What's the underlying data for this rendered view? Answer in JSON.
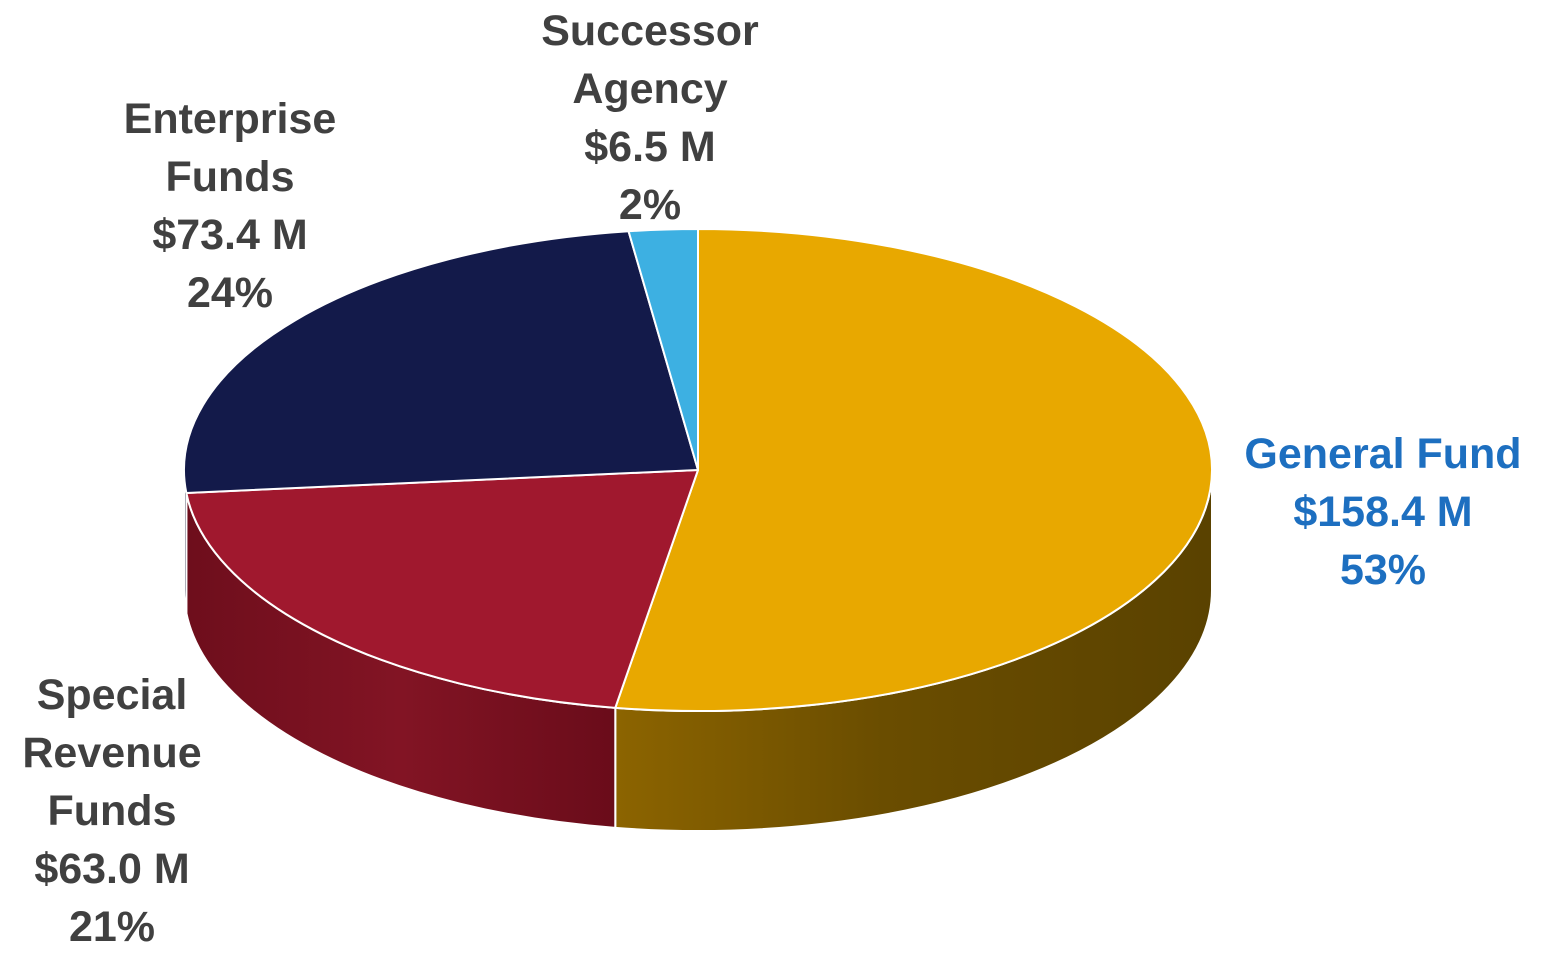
{
  "chart_data": {
    "type": "pie",
    "slices": [
      {
        "name": "General Fund",
        "amount": "$158.4 M",
        "percent": "53%",
        "value": 158.4,
        "color": "#E8A800",
        "label_color": "#1D6FC0"
      },
      {
        "name": "Special Revenue Funds",
        "amount": "$63.0 M",
        "percent": "21%",
        "value": 63.0,
        "color": "#A0182E",
        "label_color": "#404040"
      },
      {
        "name": "Enterprise Funds",
        "amount": "$73.4 M",
        "percent": "24%",
        "value": 73.4,
        "color": "#131A4A",
        "label_color": "#404040"
      },
      {
        "name": "Successor Agency",
        "amount": "$6.5 M",
        "percent": "2%",
        "value": 6.5,
        "color": "#3DB0E2",
        "label_color": "#404040"
      }
    ]
  }
}
